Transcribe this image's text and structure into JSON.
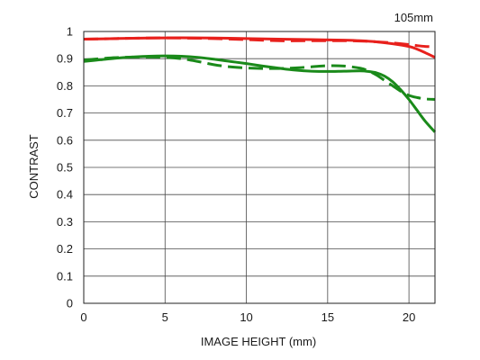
{
  "chart_data": {
    "type": "line",
    "annotation": "105mm",
    "xlabel": "IMAGE HEIGHT (mm)",
    "ylabel": "CONTRAST",
    "xlim": [
      0,
      21.6
    ],
    "ylim": [
      0,
      1
    ],
    "xticks": [
      0,
      5,
      10,
      15,
      20
    ],
    "yticks": [
      0,
      0.1,
      0.2,
      0.3,
      0.4,
      0.5,
      0.6,
      0.7,
      0.8,
      0.9,
      1
    ],
    "ytick_labels": [
      "0",
      "0.1",
      "0.2",
      "0.3",
      "0.4",
      "0.5",
      "0.6",
      "0.7",
      "0.8",
      "0.9",
      "1"
    ],
    "grid": true,
    "series": [
      {
        "color": "#e8201c",
        "dash": "solid",
        "x": [
          0,
          2,
          4,
          6,
          8,
          10,
          12,
          14,
          16,
          17,
          18,
          19,
          20,
          20.5,
          21,
          21.6
        ],
        "y": [
          0.972,
          0.974,
          0.976,
          0.977,
          0.976,
          0.974,
          0.972,
          0.97,
          0.968,
          0.966,
          0.962,
          0.955,
          0.945,
          0.935,
          0.922,
          0.905
        ]
      },
      {
        "color": "#e8201c",
        "dash": "dashed",
        "x": [
          0,
          2,
          4,
          6,
          8,
          10,
          12,
          14,
          16,
          17,
          18,
          19,
          20,
          20.5,
          21,
          21.6
        ],
        "y": [
          0.972,
          0.974,
          0.976,
          0.976,
          0.974,
          0.97,
          0.966,
          0.966,
          0.966,
          0.965,
          0.962,
          0.958,
          0.952,
          0.948,
          0.945,
          0.944
        ]
      },
      {
        "color": "#1a8a1a",
        "dash": "solid",
        "x": [
          0,
          1,
          2,
          3,
          4,
          5,
          6,
          7,
          8,
          9,
          10,
          11,
          12,
          13,
          14,
          15,
          16,
          17,
          17.5,
          18,
          18.5,
          19,
          19.5,
          20,
          20.5,
          21,
          21.6
        ],
        "y": [
          0.89,
          0.896,
          0.902,
          0.906,
          0.909,
          0.91,
          0.909,
          0.905,
          0.898,
          0.89,
          0.882,
          0.873,
          0.865,
          0.858,
          0.854,
          0.853,
          0.854,
          0.855,
          0.853,
          0.848,
          0.836,
          0.815,
          0.785,
          0.75,
          0.71,
          0.67,
          0.63
        ]
      },
      {
        "color": "#1a8a1a",
        "dash": "dashed",
        "x": [
          0,
          1,
          2,
          3,
          4,
          5,
          6,
          7,
          8,
          9,
          10,
          11,
          12,
          13,
          14,
          15,
          16,
          17,
          17.5,
          18,
          18.5,
          19,
          19.5,
          20,
          20.5,
          21,
          21.6
        ],
        "y": [
          0.895,
          0.9,
          0.904,
          0.906,
          0.906,
          0.905,
          0.9,
          0.89,
          0.878,
          0.87,
          0.866,
          0.864,
          0.864,
          0.866,
          0.87,
          0.874,
          0.873,
          0.865,
          0.855,
          0.84,
          0.82,
          0.8,
          0.78,
          0.765,
          0.757,
          0.752,
          0.75
        ]
      }
    ]
  }
}
